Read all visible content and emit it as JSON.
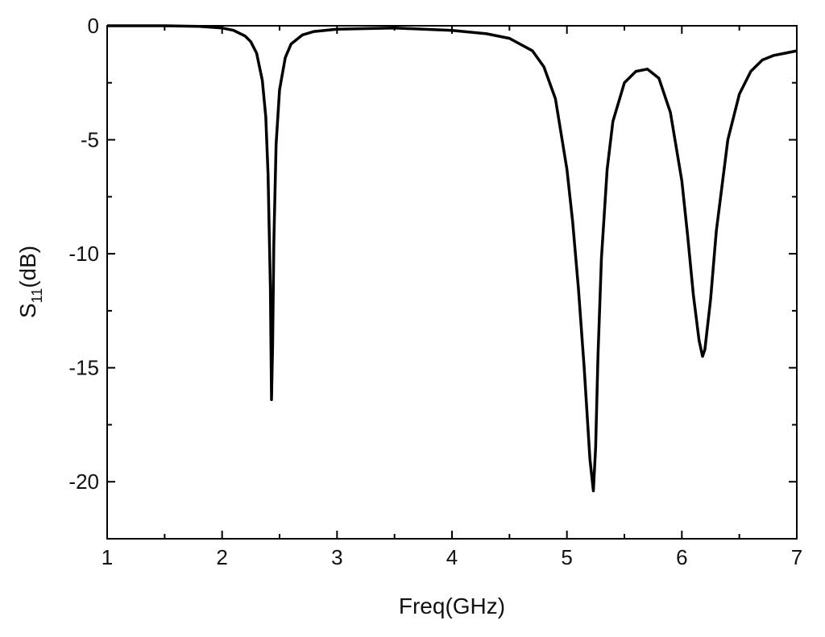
{
  "chart_data": {
    "type": "line",
    "title": "",
    "xlabel": "Freq(GHz)",
    "ylabel_main": "S",
    "ylabel_sub": "11",
    "ylabel_tail": "(dB)",
    "xlim": [
      1,
      7
    ],
    "ylim": [
      -22.5,
      0
    ],
    "xticks": [
      1,
      2,
      3,
      4,
      5,
      6,
      7
    ],
    "xtick_labels": [
      "1",
      "2",
      "3",
      "4",
      "5",
      "6",
      "7"
    ],
    "yticks": [
      0,
      -5,
      -10,
      -15,
      -20
    ],
    "ytick_labels": [
      "0",
      "-5",
      "-10",
      "-15",
      "-20"
    ],
    "grid": false,
    "line_color": "#000000",
    "series": [
      {
        "x": [
          1.0,
          1.5,
          1.8,
          2.0,
          2.1,
          2.2,
          2.25,
          2.3,
          2.35,
          2.38,
          2.4,
          2.42,
          2.43,
          2.44,
          2.45,
          2.47,
          2.5,
          2.55,
          2.6,
          2.7,
          2.8,
          3.0,
          3.5,
          4.0,
          4.3,
          4.5,
          4.7,
          4.8,
          4.9,
          5.0,
          5.05,
          5.1,
          5.15,
          5.2,
          5.23,
          5.25,
          5.27,
          5.3,
          5.35,
          5.4,
          5.5,
          5.6,
          5.7,
          5.8,
          5.9,
          6.0,
          6.05,
          6.1,
          6.15,
          6.18,
          6.2,
          6.25,
          6.3,
          6.4,
          6.5,
          6.6,
          6.7,
          6.8,
          6.9,
          7.0
        ],
        "y": [
          0.0,
          0.0,
          -0.03,
          -0.1,
          -0.2,
          -0.45,
          -0.7,
          -1.2,
          -2.4,
          -4.0,
          -6.5,
          -11.5,
          -16.4,
          -14.0,
          -9.5,
          -5.2,
          -2.8,
          -1.4,
          -0.8,
          -0.4,
          -0.25,
          -0.15,
          -0.1,
          -0.2,
          -0.35,
          -0.55,
          -1.1,
          -1.8,
          -3.2,
          -6.3,
          -8.6,
          -11.5,
          -15.0,
          -19.0,
          -20.4,
          -18.5,
          -14.5,
          -10.2,
          -6.3,
          -4.2,
          -2.5,
          -2.0,
          -1.9,
          -2.3,
          -3.8,
          -6.8,
          -9.2,
          -11.8,
          -13.8,
          -14.5,
          -14.2,
          -12.0,
          -9.0,
          -5.0,
          -3.0,
          -2.0,
          -1.5,
          -1.3,
          -1.2,
          -1.1
        ]
      }
    ]
  }
}
